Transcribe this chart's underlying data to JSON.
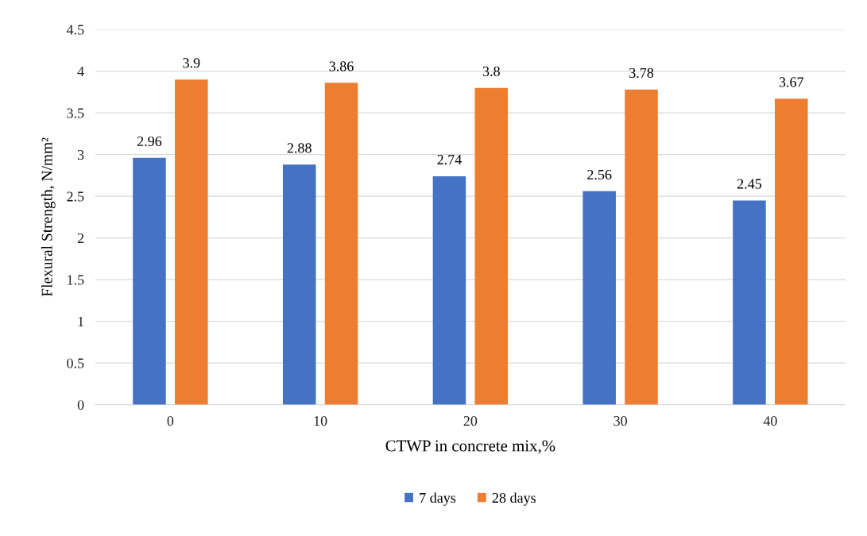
{
  "chart_data": {
    "type": "bar",
    "xlabel": "CTWP in concrete mix,%",
    "ylabel": "Flexural Strength, N/mm²",
    "categories": [
      "0",
      "10",
      "20",
      "30",
      "40"
    ],
    "series": [
      {
        "name": "7 days",
        "color": "#4472c4",
        "values": [
          2.96,
          2.88,
          2.74,
          2.56,
          2.45
        ]
      },
      {
        "name": "28 days",
        "color": "#ed7d31",
        "values": [
          3.9,
          3.86,
          3.8,
          3.78,
          3.67
        ]
      }
    ],
    "ylim": [
      0,
      4.5
    ],
    "yticks": [
      0,
      0.5,
      1,
      1.5,
      2,
      2.5,
      3,
      3.5,
      4,
      4.5
    ],
    "grid": "y",
    "legend": "bottom",
    "data_labels": true
  }
}
